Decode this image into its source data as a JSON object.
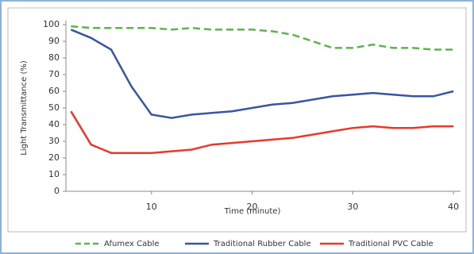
{
  "chart_data": {
    "type": "line",
    "y_label": "Light Transmittance (%)",
    "x_label": "Time (minute)",
    "x": [
      2,
      4,
      6,
      8,
      10,
      12,
      14,
      16,
      18,
      20,
      22,
      24,
      26,
      28,
      30,
      32,
      34,
      36,
      38,
      40
    ],
    "series": [
      {
        "name": "Afumex Cable",
        "color": "#5ab54a",
        "dashed": true,
        "values": [
          99,
          98,
          98,
          98,
          98,
          97,
          98,
          97,
          97,
          97,
          96,
          94,
          90,
          86,
          86,
          88,
          86,
          86,
          85,
          85
        ]
      },
      {
        "name": "Traditional Rubber Cable",
        "color": "#3a54a4",
        "dashed": false,
        "values": [
          97,
          92,
          85,
          63,
          46,
          44,
          46,
          47,
          48,
          50,
          52,
          53,
          55,
          57,
          58,
          59,
          58,
          57,
          57,
          60
        ]
      },
      {
        "name": "Traditional PVC Cable",
        "color": "#e8392b",
        "dashed": false,
        "values": [
          48,
          28,
          23,
          23,
          23,
          24,
          25,
          28,
          29,
          30,
          31,
          32,
          34,
          36,
          38,
          39,
          38,
          38,
          39,
          39
        ]
      }
    ],
    "xlim": [
      1.5,
      40.7
    ],
    "xticks": [
      10,
      20,
      30,
      40
    ],
    "ylim": [
      0,
      100
    ],
    "yticks": [
      0,
      10,
      20,
      30,
      40,
      50,
      60,
      70,
      80,
      90,
      100
    ],
    "legend": "bottom"
  }
}
